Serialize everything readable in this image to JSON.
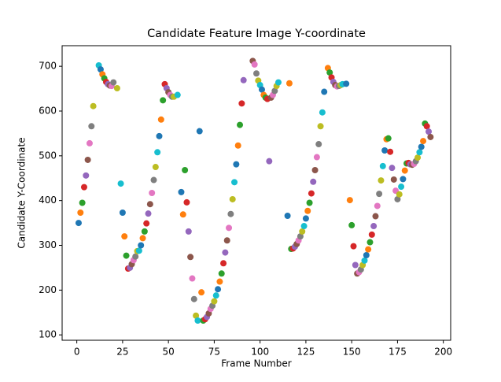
{
  "chart_data": {
    "type": "scatter",
    "title": "Candidate Feature Image Y-coordinate",
    "xlabel": "Frame Number",
    "ylabel": "Candidate Y-Coordinate",
    "palette": [
      "#1f77b4",
      "#ff7f0e",
      "#2ca02c",
      "#d62728",
      "#9467bd",
      "#8c564b",
      "#e377c2",
      "#7f7f7f",
      "#bcbd22",
      "#17becf"
    ],
    "x": [
      1,
      2,
      3,
      4,
      5,
      6,
      7,
      8,
      9,
      12,
      13,
      14,
      15,
      16,
      17,
      18,
      19,
      20,
      22,
      24,
      25,
      26,
      27,
      28,
      29,
      30,
      31,
      32,
      33,
      34,
      35,
      36,
      37,
      38,
      39,
      40,
      41,
      42,
      43,
      44,
      45,
      46,
      47,
      48,
      49,
      50,
      51,
      52,
      53,
      55,
      57,
      58,
      59,
      60,
      61,
      62,
      63,
      64,
      65,
      66,
      67,
      68,
      69,
      70,
      71,
      72,
      73,
      74,
      75,
      76,
      77,
      78,
      79,
      80,
      81,
      82,
      83,
      84,
      85,
      86,
      87,
      88,
      89,
      90,
      91,
      96,
      97,
      98,
      99,
      100,
      101,
      102,
      103,
      104,
      105,
      106,
      107,
      108,
      109,
      110,
      115,
      116,
      117,
      118,
      119,
      120,
      121,
      122,
      123,
      124,
      125,
      126,
      127,
      128,
      129,
      130,
      131,
      132,
      133,
      134,
      135,
      137,
      138,
      139,
      140,
      141,
      142,
      143,
      144,
      145,
      147,
      149,
      150,
      151,
      152,
      153,
      154,
      155,
      156,
      157,
      158,
      159,
      160,
      161,
      162,
      163,
      164,
      165,
      166,
      167,
      168,
      169,
      170,
      171,
      172,
      173,
      174,
      175,
      176,
      177,
      178,
      179,
      180,
      181,
      182,
      183,
      184,
      185,
      186,
      187,
      188,
      189,
      190,
      191,
      192,
      193
    ],
    "values": [
      350,
      373,
      395,
      430,
      456,
      491,
      528,
      566,
      611,
      702,
      693,
      682,
      673,
      665,
      660,
      657,
      656,
      664,
      651,
      438,
      373,
      320,
      277,
      248,
      250,
      258,
      267,
      275,
      287,
      288,
      300,
      316,
      331,
      349,
      371,
      392,
      417,
      446,
      475,
      508,
      544,
      581,
      624,
      660,
      651,
      642,
      636,
      632,
      632,
      636,
      419,
      369,
      468,
      396,
      331,
      274,
      226,
      180,
      143,
      132,
      555,
      195,
      132,
      135,
      140,
      148,
      158,
      165,
      175,
      188,
      202,
      219,
      237,
      260,
      284,
      311,
      339,
      370,
      403,
      441,
      481,
      523,
      569,
      617,
      669,
      712,
      704,
      684,
      668,
      658,
      648,
      636,
      630,
      627,
      488,
      630,
      636,
      645,
      656,
      664,
      366,
      662,
      292,
      293,
      297,
      303,
      311,
      320,
      331,
      343,
      360,
      377,
      395,
      416,
      442,
      468,
      497,
      526,
      566,
      597,
      643,
      696,
      686,
      675,
      665,
      658,
      655,
      656,
      658,
      660,
      661,
      401,
      345,
      298,
      256,
      237,
      240,
      246,
      256,
      266,
      278,
      291,
      307,
      324,
      343,
      365,
      388,
      415,
      445,
      477,
      512,
      537,
      539,
      509,
      473,
      447,
      422,
      403,
      414,
      431,
      448,
      467,
      483,
      484,
      481,
      480,
      482,
      488,
      496,
      508,
      520,
      533,
      572,
      566,
      554,
      542
    ],
    "xlim": [
      -8,
      204
    ],
    "ylim": [
      88,
      746
    ],
    "xticks": [
      0,
      25,
      50,
      75,
      100,
      125,
      150,
      175,
      200
    ],
    "yticks": [
      100,
      200,
      300,
      400,
      500,
      600,
      700
    ]
  }
}
